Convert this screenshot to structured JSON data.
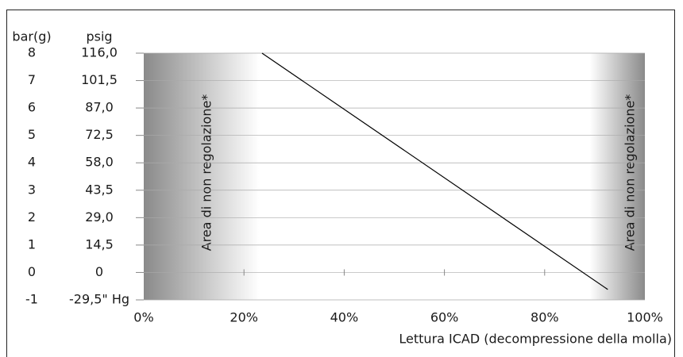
{
  "chart_data": {
    "type": "line",
    "y_axis_label": "bar(g)",
    "y2_axis_label": "psig",
    "x_axis_label": "Lettura ICAD (decompressione della molla)",
    "xlim": [
      0,
      100
    ],
    "xticks": [
      {
        "value": 0,
        "label": "0%"
      },
      {
        "value": 20,
        "label": "20%"
      },
      {
        "value": 40,
        "label": "40%"
      },
      {
        "value": 60,
        "label": "60%"
      },
      {
        "value": 80,
        "label": "80%"
      },
      {
        "value": 100,
        "label": "100%"
      }
    ],
    "ylim": [
      -1,
      8
    ],
    "yticks": [
      8,
      7,
      6,
      5,
      4,
      3,
      2,
      1,
      0,
      -1
    ],
    "y2tick_labels": [
      "116,0",
      "101,5",
      "87,0",
      "72,5",
      "58,0",
      "43,5",
      "29,0",
      "14,5",
      "0",
      "-29,5\" Hg"
    ],
    "grid": true,
    "shaded_regions": [
      [
        0,
        23
      ],
      [
        89,
        100
      ]
    ],
    "annotations": [
      "Area di non regolazione*",
      "Area di non regolazione*"
    ],
    "series": [
      {
        "color": "#000000",
        "x": [
          23.6,
          92.6
        ],
        "values": [
          8,
          -0.62
        ]
      }
    ]
  }
}
